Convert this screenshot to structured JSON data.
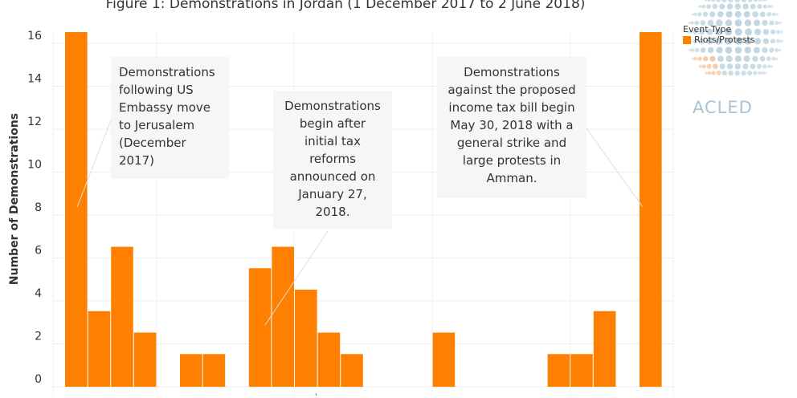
{
  "chart_data": {
    "type": "bar",
    "title": "Figure 1: Demonstrations in Jordan (1 December 2017 to 2 June 2018)",
    "ylabel": "Number of Demonstrations",
    "xlabel": "",
    "ylim": [
      0,
      16.5
    ],
    "yticks": [
      0,
      2,
      4,
      6,
      8,
      10,
      12,
      14,
      16
    ],
    "grid": true,
    "bar_color": "#ff8000",
    "series": [
      {
        "name": "Riots/Protests",
        "values": [
          16,
          3,
          6,
          2,
          0,
          1,
          1,
          0,
          5,
          6,
          4,
          2,
          1,
          0,
          0,
          0,
          2,
          0,
          0,
          0,
          0,
          1,
          1,
          3,
          0,
          16
        ]
      }
    ],
    "legend": {
      "title": "Event Type",
      "entries": [
        "Riots/Protests"
      ],
      "placement": "top-right"
    },
    "annotations": [
      "Demonstrations\nfollowing US\nEmbassy move\nto Jerusalem\n(December\n2017)",
      "Demonstrations\nbegin after\ninitial tax\nreforms\nannounced on\nJanuary 27,\n2018.",
      "Demonstrations\nagainst the proposed\nincome tax bill begin\nMay 30, 2018 with a\ngeneral strike and\nlarge protests in\nAmman."
    ]
  },
  "logo": {
    "text": "ACLED"
  },
  "colors": {
    "bar": "#ff8000",
    "grid": "#ececec",
    "logo_dots": "#b7cfdd",
    "logo_accent": "#f5b78a"
  }
}
